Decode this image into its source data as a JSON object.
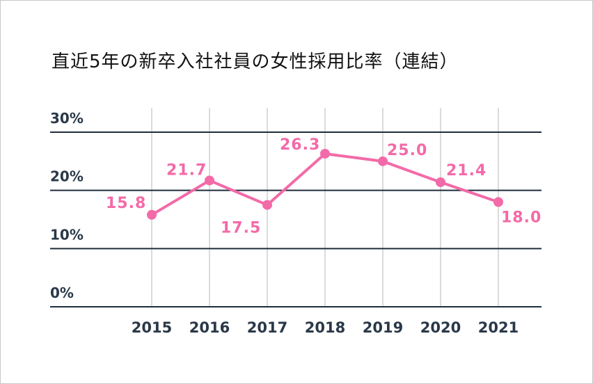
{
  "title": "直近5年の新卒入社社員の女性採用比率（連結）",
  "colors": {
    "line": "#f36aa8",
    "axis": "#1f2d3d",
    "grid": "#cfcfcf",
    "tick": "#2a3848"
  },
  "chart_data": {
    "type": "line",
    "title": "直近5年の新卒入社社員の女性採用比率（連結）",
    "x": [
      "2015",
      "2016",
      "2017",
      "2018",
      "2019",
      "2020",
      "2021"
    ],
    "series": [
      {
        "values": [
          15.8,
          21.7,
          17.5,
          26.3,
          25.0,
          21.4,
          18.0
        ],
        "labels": [
          "15.8",
          "21.7",
          "17.5",
          "26.3",
          "25.0",
          "21.4",
          "18.0"
        ]
      }
    ],
    "yticks": [
      "0%",
      "10%",
      "20%",
      "30%"
    ],
    "ylim": [
      0,
      30
    ],
    "grid": "vertical and horizontal",
    "legend": "none"
  }
}
